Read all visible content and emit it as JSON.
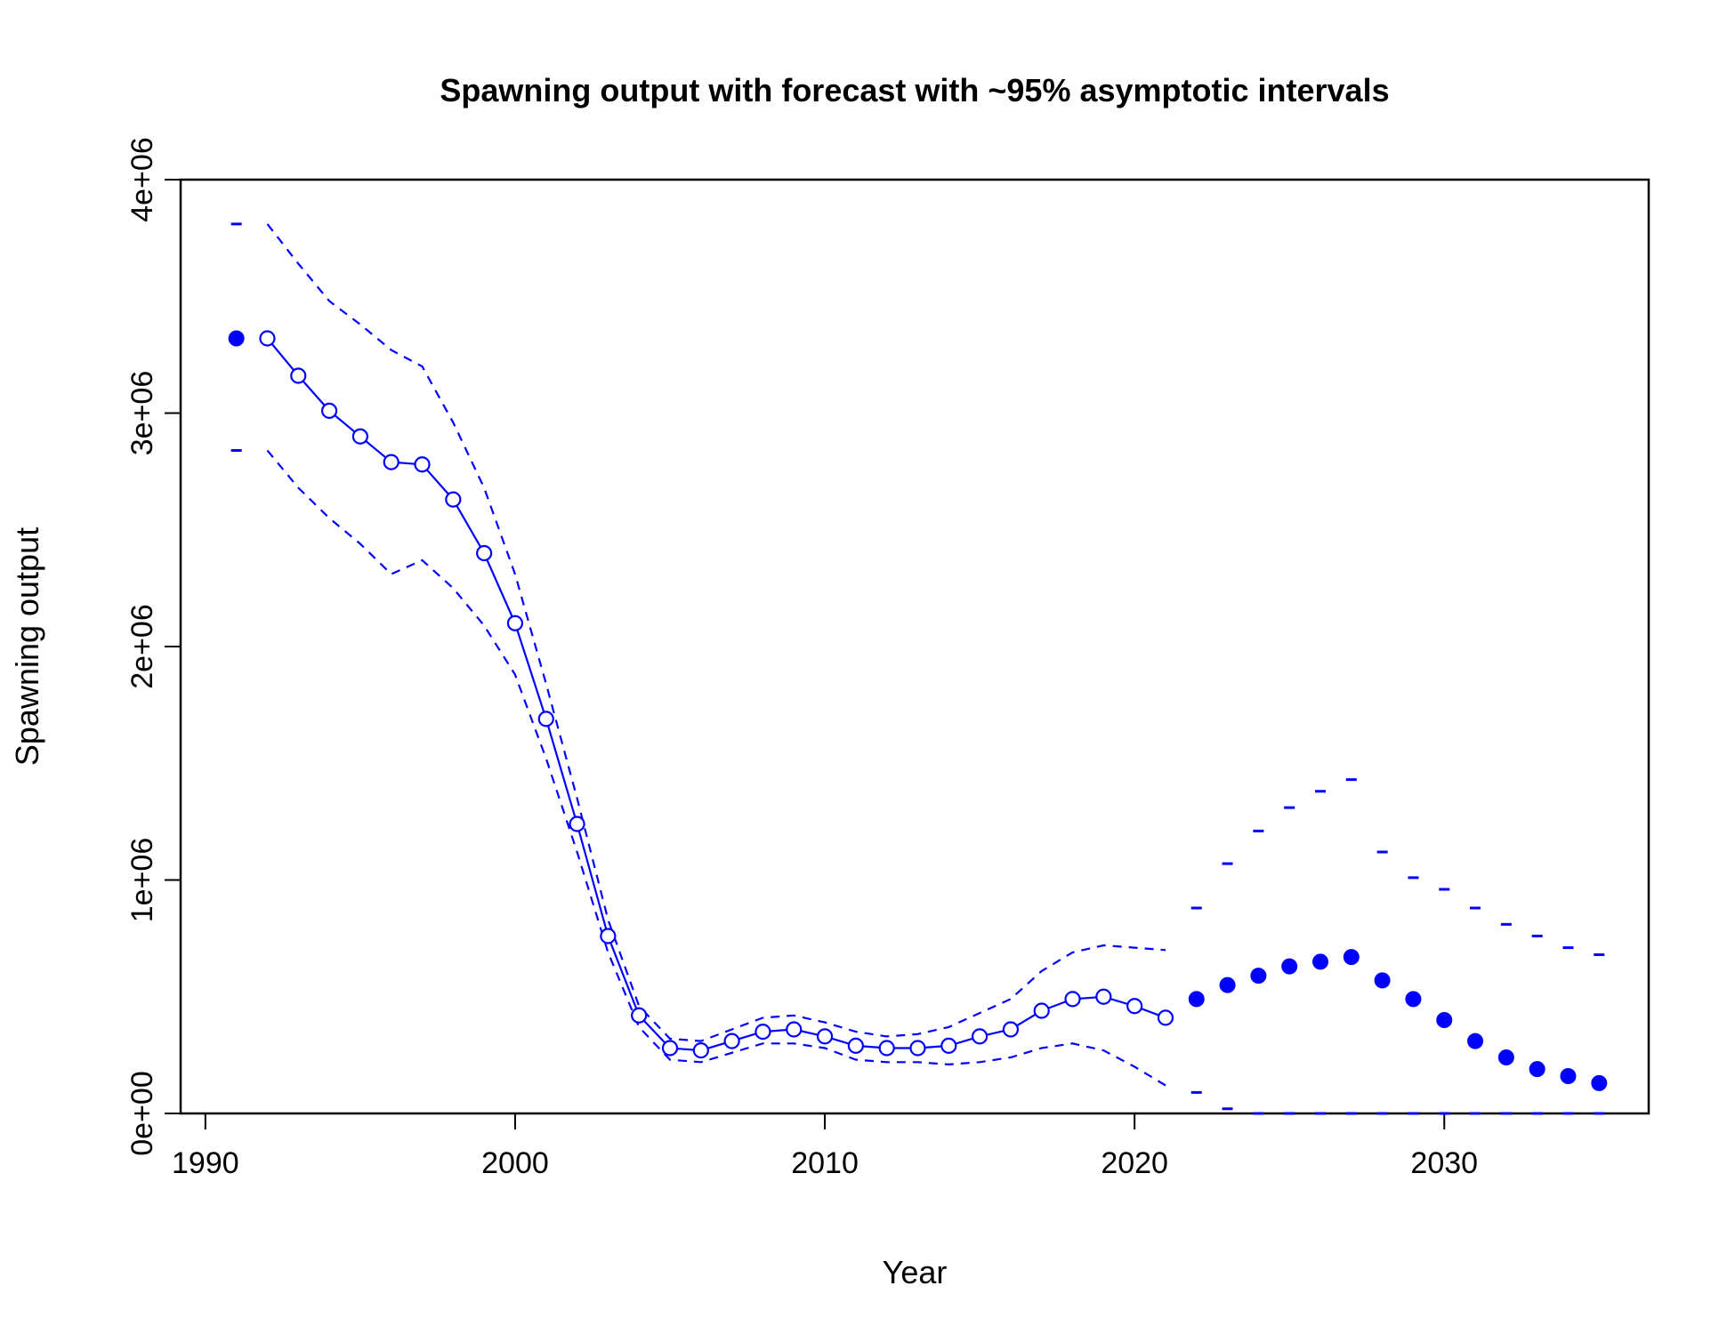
{
  "chart_data": {
    "type": "line",
    "title": "Spawning output with forecast with ~95% asymptotic intervals",
    "xlabel": "Year",
    "ylabel": "Spawning output",
    "xlim": [
      1990,
      2035
    ],
    "ylim": [
      0,
      4000000
    ],
    "x_ticks": [
      1990,
      2000,
      2010,
      2020,
      2030
    ],
    "x_tick_labels": [
      "1990",
      "2000",
      "2010",
      "2020",
      "2030"
    ],
    "y_ticks": [
      0,
      1000000,
      2000000,
      3000000,
      4000000
    ],
    "y_tick_labels": [
      "0e+00",
      "1e+06",
      "2e+06",
      "3e+06",
      "4e+06"
    ],
    "grid": false,
    "color": "#0000ff",
    "virgin": {
      "x": 1991,
      "y": 3320000,
      "lower": 2840000,
      "upper": 3810000
    },
    "estimated": {
      "x": [
        1992,
        1993,
        1994,
        1995,
        1996,
        1997,
        1998,
        1999,
        2000,
        2001,
        2002,
        2003,
        2004,
        2005,
        2006,
        2007,
        2008,
        2009,
        2010,
        2011,
        2012,
        2013,
        2014,
        2015,
        2016,
        2017,
        2018,
        2019,
        2020,
        2021
      ],
      "y": [
        3320000,
        3160000,
        3010000,
        2900000,
        2790000,
        2780000,
        2630000,
        2400000,
        2100000,
        1690000,
        1240000,
        760000,
        420000,
        280000,
        270000,
        310000,
        350000,
        360000,
        330000,
        290000,
        280000,
        280000,
        290000,
        330000,
        360000,
        440000,
        490000,
        500000,
        460000,
        410000
      ],
      "lower": [
        2840000,
        2680000,
        2550000,
        2440000,
        2310000,
        2370000,
        2250000,
        2090000,
        1880000,
        1520000,
        1120000,
        690000,
        370000,
        230000,
        220000,
        260000,
        300000,
        300000,
        280000,
        230000,
        220000,
        220000,
        210000,
        220000,
        240000,
        280000,
        300000,
        270000,
        200000,
        120000
      ],
      "upper": [
        3810000,
        3640000,
        3480000,
        3380000,
        3270000,
        3200000,
        2960000,
        2680000,
        2310000,
        1840000,
        1350000,
        830000,
        460000,
        320000,
        310000,
        360000,
        410000,
        420000,
        390000,
        350000,
        330000,
        340000,
        370000,
        430000,
        490000,
        610000,
        690000,
        720000,
        710000,
        700000
      ]
    },
    "forecast": {
      "x": [
        2022,
        2023,
        2024,
        2025,
        2026,
        2027,
        2028,
        2029,
        2030,
        2031,
        2032,
        2033,
        2034,
        2035
      ],
      "y": [
        490000,
        550000,
        590000,
        630000,
        650000,
        670000,
        570000,
        490000,
        400000,
        310000,
        240000,
        190000,
        160000,
        130000
      ],
      "lower": [
        90000,
        20000,
        0,
        0,
        0,
        0,
        0,
        0,
        0,
        0,
        0,
        0,
        0,
        0
      ],
      "upper": [
        880000,
        1070000,
        1210000,
        1310000,
        1380000,
        1430000,
        1120000,
        1010000,
        960000,
        880000,
        810000,
        760000,
        710000,
        680000
      ]
    }
  }
}
